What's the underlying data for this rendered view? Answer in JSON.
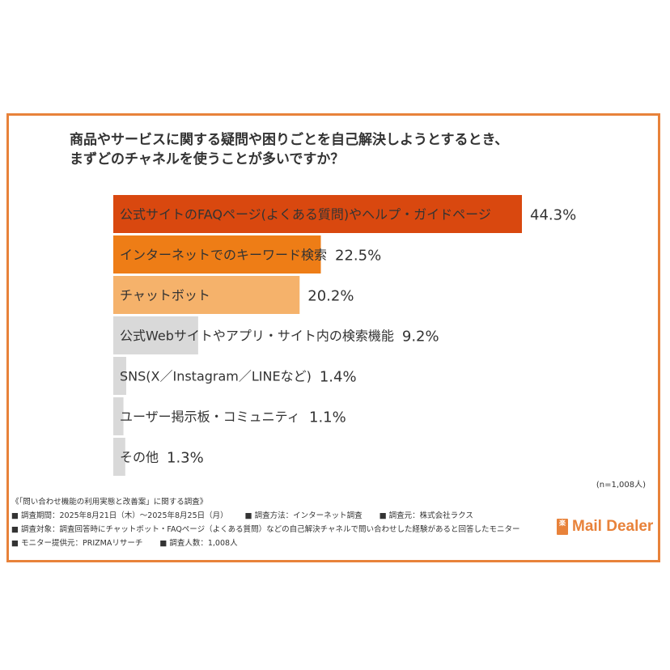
{
  "title_lines": [
    "商品やサービスに関する疑問や困りごとを自己解決しようとするとき、",
    "まずどのチャネルを使うことが多いですか？"
  ],
  "chart_data": {
    "type": "bar",
    "orientation": "horizontal",
    "categories": [
      "公式サイトのFAQページ(よくある質問)やヘルプ・ガイドページ",
      "インターネットでのキーワード検索",
      "チャットボット",
      "公式Webサイトやアプリ・サイト内の検索機能",
      "SNS(X／Instagram／LINEなど)",
      "ユーザー掲示板・コミュニティ",
      "その他"
    ],
    "values": [
      44.3,
      22.5,
      20.2,
      9.2,
      1.4,
      1.1,
      1.3
    ],
    "value_labels": [
      "44.3%",
      "22.5%",
      "20.2%",
      "9.2%",
      "1.4%",
      "1.1%",
      "1.3%"
    ],
    "colors": [
      "#d9480f",
      "#ee7d16",
      "#f5b26b",
      "#d9d9d9",
      "#d9d9d9",
      "#d9d9d9",
      "#d9d9d9"
    ],
    "xlim": [
      0,
      44.3
    ]
  },
  "sample_note": "(n=1,008人)",
  "footer": {
    "survey_title": "《「問い合わせ機能の利用実態と改善案」に関する調査》",
    "line1": [
      "■ 調査期間：2025年8月21日（木）〜2025年8月25日（月）",
      "■ 調査方法：インターネット調査",
      "■ 調査元：株式会社ラクス"
    ],
    "line2": "■ 調査対象：調査回答時にチャットボット・FAQページ（よくある質問）などの自己解決チャネルで問い合わせした経験があると回答したモニター",
    "line3": [
      "■ モニター提供元：PRIZMAリサーチ",
      "■ 調査人数：1,008人"
    ]
  },
  "logo": {
    "mark": "楽",
    "text": "Mail Dealer"
  }
}
